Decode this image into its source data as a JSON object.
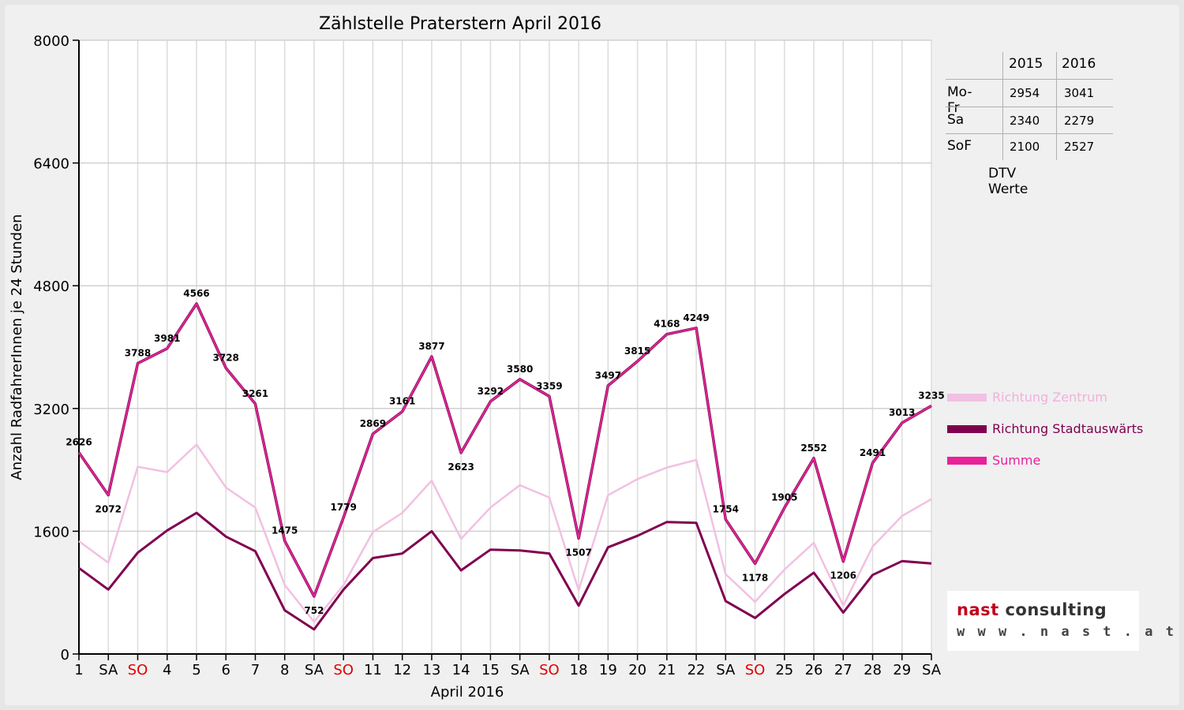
{
  "chart_data": {
    "type": "line",
    "title": "Zählstelle Praterstern April 2016",
    "xlabel": "April 2016",
    "ylabel": "Anzahl RadfahrerInnen je 24 Stunden",
    "ylim": [
      0,
      8000
    ],
    "yticks": [
      0,
      1600,
      3200,
      4800,
      6400,
      8000
    ],
    "grid": "vertical lines at each day, horizontal lines at y ticks",
    "categories": [
      "1",
      "SA",
      "SO",
      "4",
      "5",
      "6",
      "7",
      "8",
      "SA",
      "SO",
      "11",
      "12",
      "13",
      "14",
      "15",
      "SA",
      "SO",
      "18",
      "19",
      "20",
      "21",
      "22",
      "SA",
      "SO",
      "25",
      "26",
      "27",
      "28",
      "29",
      "SA"
    ],
    "sunday_indices": [
      2,
      9,
      16,
      23
    ],
    "series": [
      {
        "name": "Richtung Zentrum",
        "color": "#f2c0e2",
        "values": [
          1470,
          1190,
          2440,
          2370,
          2730,
          2170,
          1910,
          900,
          420,
          900,
          1590,
          1840,
          2260,
          1500,
          1910,
          2200,
          2040,
          830,
          2070,
          2280,
          2430,
          2530,
          1040,
          680,
          1100,
          1450,
          630,
          1400,
          1800,
          2020
        ]
      },
      {
        "name": "Richtung Stadtauswärts",
        "color": "#800050",
        "values": [
          1120,
          840,
          1320,
          1610,
          1840,
          1530,
          1340,
          570,
          320,
          840,
          1250,
          1310,
          1600,
          1090,
          1360,
          1350,
          1310,
          630,
          1390,
          1540,
          1720,
          1710,
          690,
          470,
          780,
          1060,
          540,
          1030,
          1210,
          1180
        ]
      },
      {
        "name": "Summe",
        "color": "#e8229a",
        "values": [
          2626,
          2072,
          3788,
          3981,
          4566,
          3728,
          3261,
          1475,
          752,
          1779,
          2869,
          3161,
          3877,
          2623,
          3292,
          3580,
          3359,
          1507,
          3497,
          3815,
          4168,
          4249,
          1754,
          1178,
          1905,
          2552,
          1206,
          2491,
          3013,
          3235
        ],
        "data_labels": true
      }
    ],
    "legend_position": "right"
  },
  "dtv_table": {
    "caption": "DTV Werte",
    "headers": [
      "",
      "2015",
      "2016"
    ],
    "rows": [
      {
        "label": "Mo-Fr",
        "v2015": "2954",
        "v2016": "3041"
      },
      {
        "label": "Sa",
        "v2015": "2340",
        "v2016": "2279"
      },
      {
        "label": "SoF",
        "v2015": "2100",
        "v2016": "2527"
      }
    ]
  },
  "logo": {
    "name": "nast consulting",
    "url": "w w w . n a s t . a t"
  },
  "colors": {
    "sunday": "#e00000",
    "logo_red": "#c0001a",
    "logo_dark": "#333333"
  }
}
